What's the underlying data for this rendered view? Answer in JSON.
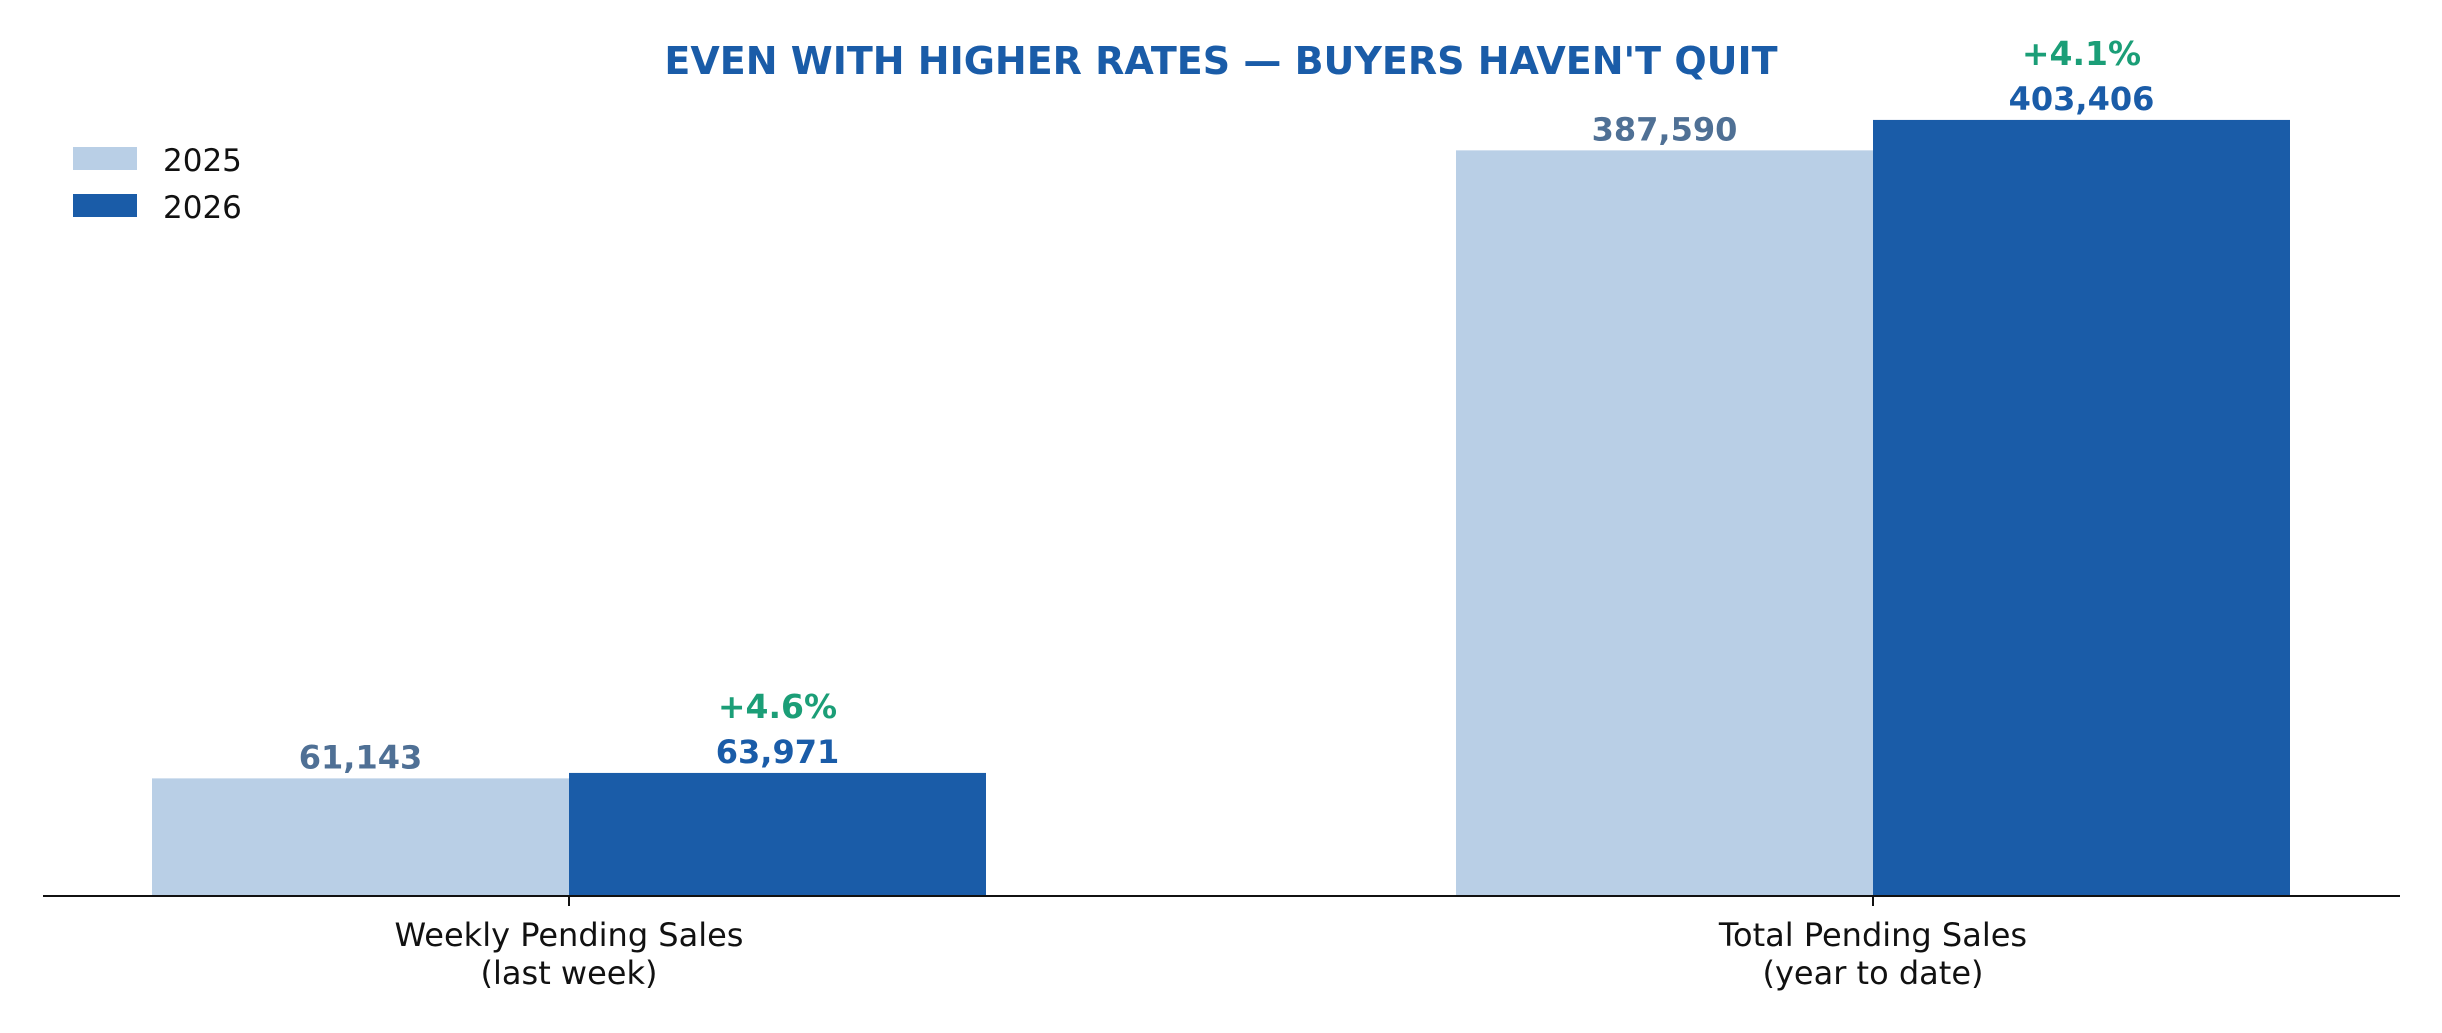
{
  "chart_data": {
    "type": "bar",
    "title": "EVEN WITH HIGHER RATES — BUYERS HAVEN'T QUIT",
    "xlabel": "",
    "ylabel": "",
    "categories": [
      [
        "Weekly Pending Sales",
        "(last week)"
      ],
      [
        "Total Pending Sales",
        "(year to date)"
      ]
    ],
    "series": [
      {
        "name": "2025",
        "values": [
          61143,
          387590
        ],
        "labels": [
          "61,143",
          "387,590"
        ]
      },
      {
        "name": "2026",
        "values": [
          63971,
          403406
        ],
        "labels": [
          "63,971",
          "403,406"
        ]
      }
    ],
    "annotations": [
      "+4.6%",
      "+4.1%"
    ],
    "ylim": [
      0,
      420000
    ],
    "grid": false,
    "legend": "top-left",
    "y_axis_visible": false
  },
  "colors": {
    "title": "#1a5ca8",
    "series_2025": "#b9cfe6",
    "series_2026": "#1a5ca8",
    "label_2025": "#4f7095",
    "label_2026": "#1a5ca8",
    "change": "#1b9e77",
    "axis": "#111111"
  }
}
